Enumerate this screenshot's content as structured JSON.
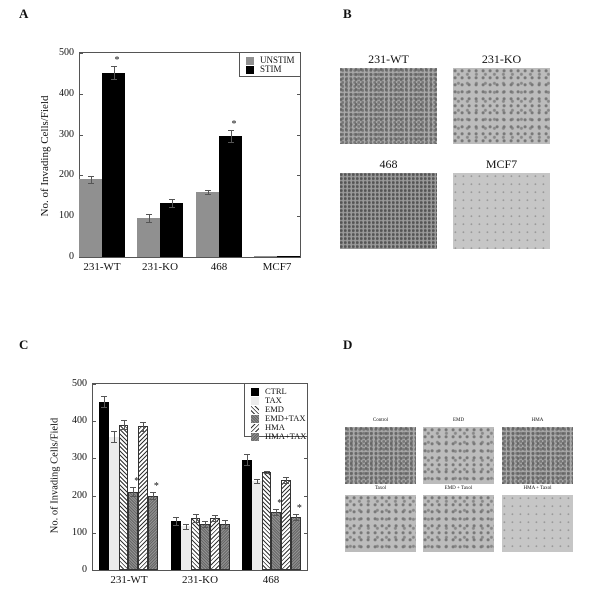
{
  "panels": {
    "A": {
      "letter": "A"
    },
    "B": {
      "letter": "B"
    },
    "C": {
      "letter": "C"
    },
    "D": {
      "letter": "D"
    }
  },
  "chart_data": [
    {
      "panel": "A",
      "type": "bar",
      "title": "",
      "xlabel": "",
      "ylabel": "No. of Invading Cells/Field",
      "ylim": [
        0,
        500
      ],
      "yticks": [
        "0",
        "100",
        "200",
        "300",
        "400",
        "500"
      ],
      "categories": [
        "231-WT",
        "231-KO",
        "468",
        "MCF7"
      ],
      "legend_position": "upper-right",
      "series": [
        {
          "name": "UNSTIM",
          "color": "#909090",
          "values": [
            190,
            95,
            160,
            1
          ],
          "errors": [
            8,
            10,
            5,
            0
          ]
        },
        {
          "name": "STIM",
          "color": "#000000",
          "values": [
            452,
            132,
            297,
            3
          ],
          "errors": [
            15,
            10,
            14,
            0
          ]
        }
      ],
      "annotations": [
        {
          "category": "231-WT",
          "series": "STIM",
          "text": "*"
        },
        {
          "category": "468",
          "series": "STIM",
          "text": "*"
        }
      ]
    },
    {
      "panel": "C",
      "type": "bar",
      "title": "",
      "xlabel": "",
      "ylabel": "No. of Invading Cells/Field",
      "ylim": [
        0,
        500
      ],
      "yticks": [
        "0",
        "100",
        "200",
        "300",
        "400",
        "500"
      ],
      "categories": [
        "231-WT",
        "231-KO",
        "468"
      ],
      "legend_position": "upper-right",
      "series": [
        {
          "name": "CTRL",
          "pattern": "solid-black",
          "values": [
            452,
            132,
            297
          ],
          "errors": [
            15,
            10,
            14
          ]
        },
        {
          "name": "TAX",
          "pattern": "light-gray",
          "values": [
            358,
            117,
            240
          ],
          "errors": [
            15,
            8,
            5
          ]
        },
        {
          "name": "EMD",
          "pattern": "diagonal-hatch",
          "values": [
            390,
            140,
            264
          ],
          "errors": [
            12,
            10,
            3
          ]
        },
        {
          "name": "EMD+TAX",
          "pattern": "crosshatch-dense",
          "values": [
            210,
            123,
            155
          ],
          "errors": [
            12,
            8,
            8
          ]
        },
        {
          "name": "HMA",
          "pattern": "reverse-diagonal-hatch",
          "values": [
            386,
            140,
            243
          ],
          "errors": [
            13,
            7,
            8
          ]
        },
        {
          "name": "HMA+TAX",
          "pattern": "crosshatch-dense-reverse",
          "values": [
            200,
            124,
            142
          ],
          "errors": [
            10,
            10,
            8
          ]
        }
      ],
      "annotations": [
        {
          "category": "231-WT",
          "series": "EMD+TAX",
          "text": "*"
        },
        {
          "category": "231-WT",
          "series": "HMA+TAX",
          "text": "*"
        },
        {
          "category": "468",
          "series": "EMD+TAX",
          "text": "*"
        },
        {
          "category": "468",
          "series": "HMA+TAX",
          "text": "*"
        }
      ]
    }
  ],
  "panel_b": {
    "images": [
      {
        "label": "231-WT",
        "texture": "dense"
      },
      {
        "label": "231-KO",
        "texture": "medium"
      },
      {
        "label": "468",
        "texture": "dark"
      },
      {
        "label": "MCF7",
        "texture": "light"
      }
    ]
  },
  "panel_d": {
    "images": [
      {
        "label": "Control",
        "texture": "dense"
      },
      {
        "label": "EMD",
        "texture": "medium"
      },
      {
        "label": "HMA",
        "texture": "dense"
      },
      {
        "label": "Taxol",
        "texture": "medium"
      },
      {
        "label": "EMD + Taxol",
        "texture": "medium"
      },
      {
        "label": "HMA + Taxol",
        "texture": "light"
      }
    ]
  }
}
